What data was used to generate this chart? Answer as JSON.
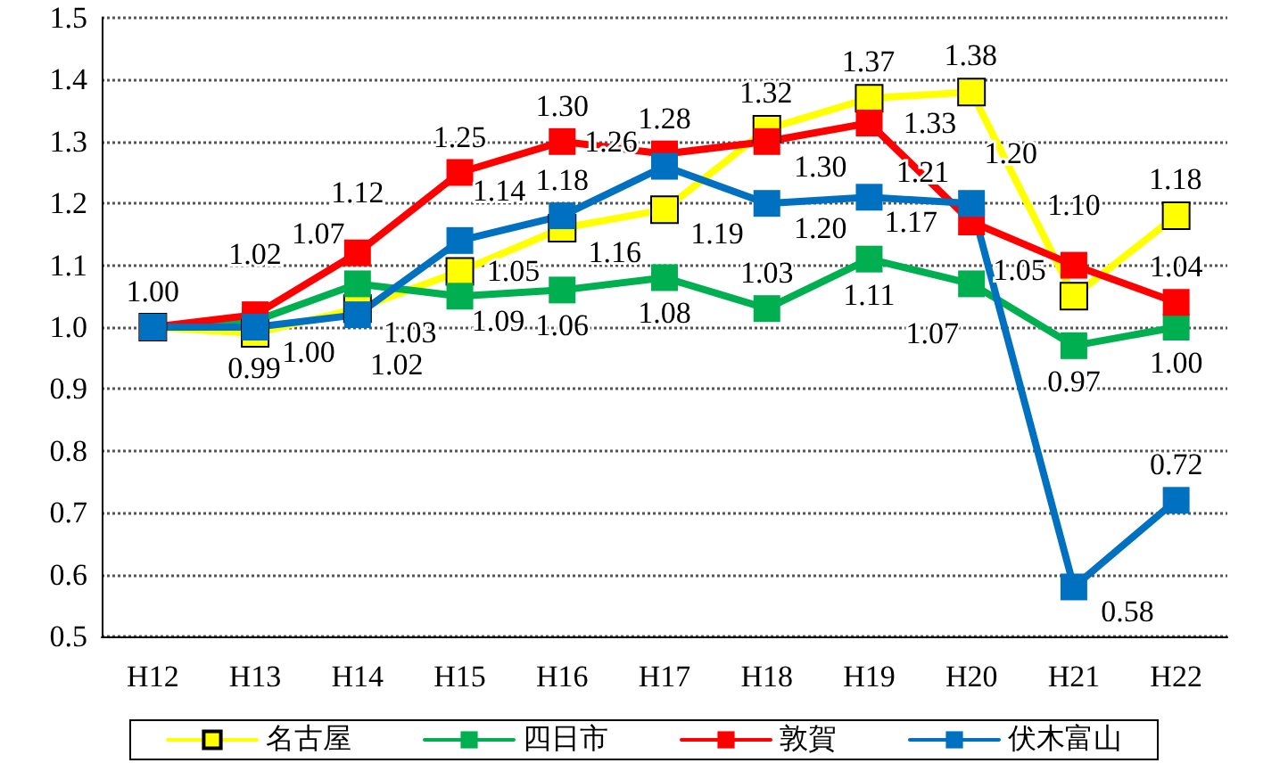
{
  "chart_data": {
    "type": "line",
    "categories": [
      "H12",
      "H13",
      "H14",
      "H15",
      "H16",
      "H17",
      "H18",
      "H19",
      "H20",
      "H21",
      "H22"
    ],
    "series": [
      {
        "name": "名古屋",
        "color": "#ffff00",
        "values": [
          1.0,
          0.99,
          1.03,
          1.09,
          1.16,
          1.19,
          1.32,
          1.37,
          1.38,
          1.05,
          1.18
        ],
        "value_labels": [
          null,
          "0.99",
          "1.03",
          "1.09",
          "1.16",
          "1.19",
          "1.32",
          "1.37",
          "1.38",
          "1.05",
          "1.18"
        ]
      },
      {
        "name": "四日市",
        "color": "#00b050",
        "values": [
          1.0,
          1.01,
          1.07,
          1.05,
          1.06,
          1.08,
          1.03,
          1.11,
          1.07,
          0.97,
          1.0
        ],
        "value_labels": [
          null,
          null,
          "1.07",
          "1.05",
          "1.06",
          "1.08",
          "1.03",
          "1.11",
          "1.07",
          "0.97",
          "1.00"
        ]
      },
      {
        "name": "敦賀",
        "color": "#ff0000",
        "values": [
          1.0,
          1.02,
          1.12,
          1.25,
          1.3,
          1.28,
          1.3,
          1.33,
          1.17,
          1.1,
          1.04
        ],
        "value_labels": [
          "1.00",
          "1.02",
          "1.12",
          "1.25",
          "1.30",
          "1.28",
          "1.30",
          "1.33",
          "1.17",
          "1.10",
          "1.04"
        ]
      },
      {
        "name": "伏木富山",
        "color": "#0070c0",
        "values": [
          1.0,
          1.0,
          1.02,
          1.14,
          1.18,
          1.26,
          1.2,
          1.21,
          1.2,
          0.58,
          0.72
        ],
        "value_labels": [
          null,
          "1.00",
          "1.02",
          "1.14",
          "1.18",
          "1.26",
          "1.20",
          "1.21",
          "1.20",
          "0.58",
          "0.72"
        ]
      }
    ],
    "ylim": [
      0.5,
      1.5
    ],
    "yticks": [
      0.5,
      0.6,
      0.7,
      0.8,
      0.9,
      {
        "value": 1,
        "label": "1.0"
      },
      1.1,
      1.2,
      1.3,
      1.4,
      1.5
    ],
    "grid": "y",
    "legend": "bottom",
    "marker": "square",
    "line_style": "solid"
  }
}
